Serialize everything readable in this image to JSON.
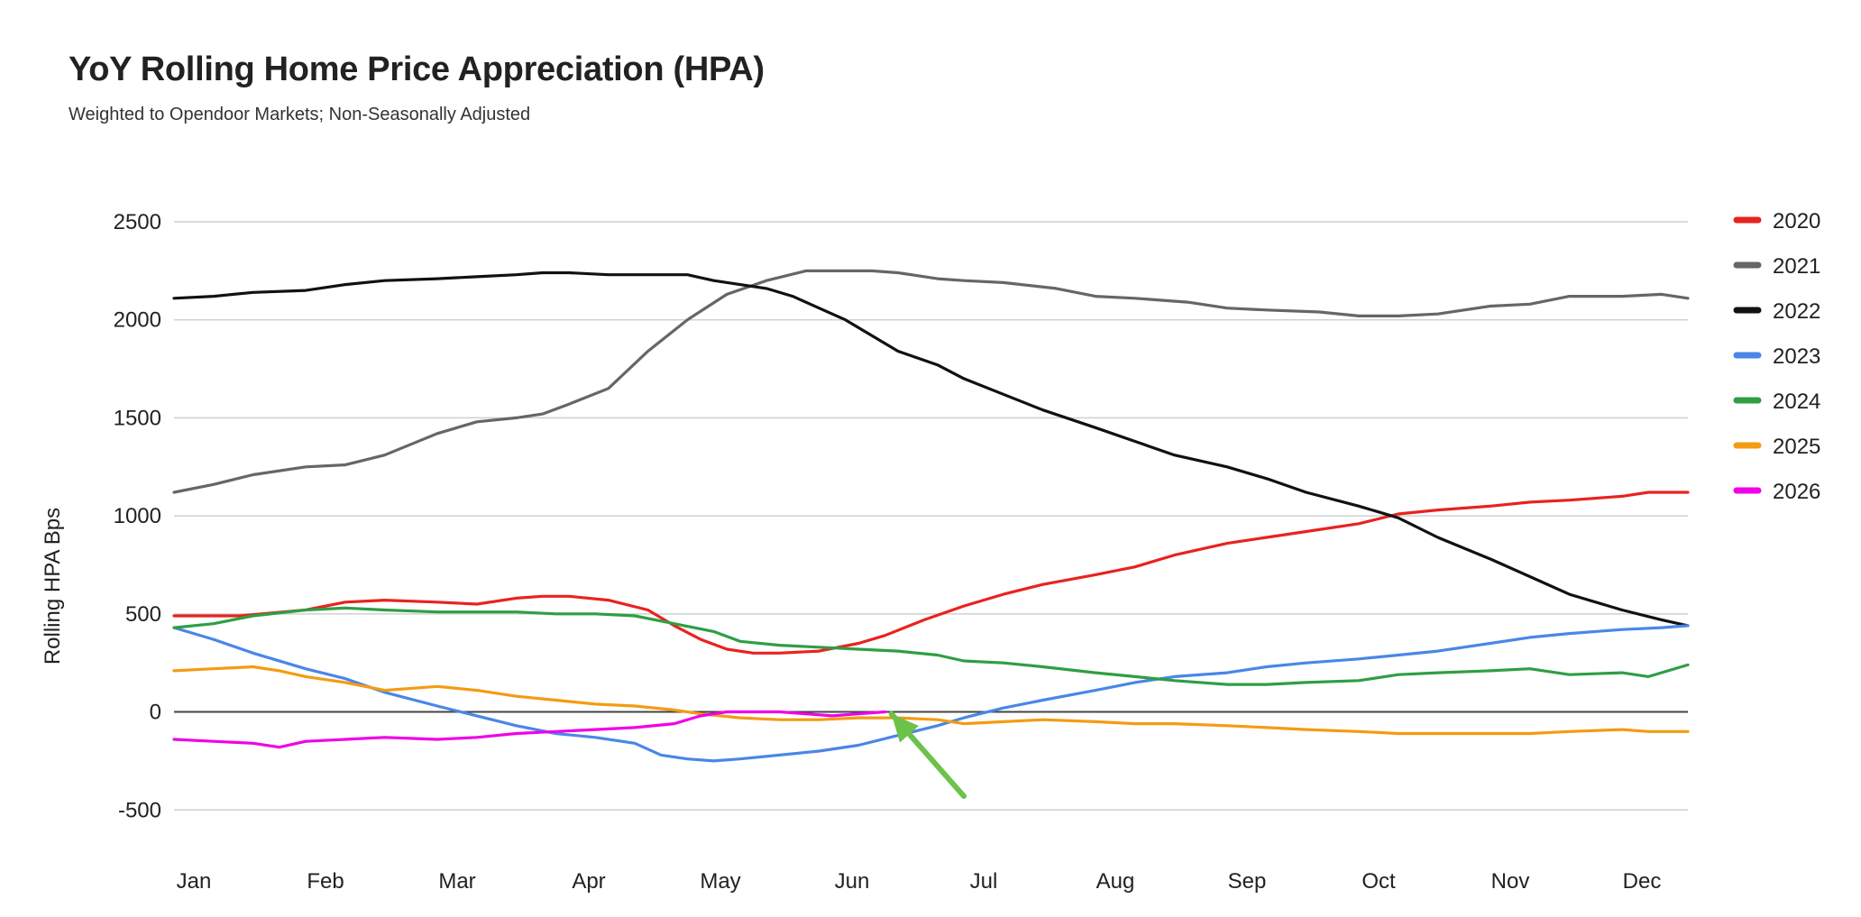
{
  "chart_data": {
    "type": "line",
    "title": "YoY Rolling Home Price Appreciation (HPA)",
    "subtitle": "Weighted to Opendoor Markets; Non-Seasonally Adjusted",
    "xlabel": "",
    "ylabel": "Rolling HPA Bps",
    "ylim": [
      -600,
      2500
    ],
    "y_ticks": [
      2500,
      2000,
      1500,
      1000,
      500,
      0,
      -500
    ],
    "x_ticks": [
      "Jan",
      "Feb",
      "Mar",
      "Apr",
      "May",
      "Jun",
      "Jul",
      "Aug",
      "Sep",
      "Oct",
      "Nov",
      "Dec"
    ],
    "x_domain_months": [
      1.0,
      12.5
    ],
    "grid": true,
    "legend_position": "right",
    "series": [
      {
        "name": "2020",
        "color": "#e8231f",
        "x": [
          1.0,
          1.5,
          2.0,
          2.3,
          2.6,
          3.0,
          3.3,
          3.6,
          3.8,
          4.0,
          4.3,
          4.6,
          4.8,
          5.0,
          5.2,
          5.4,
          5.6,
          5.9,
          6.2,
          6.4,
          6.7,
          7.0,
          7.3,
          7.6,
          8.0,
          8.3,
          8.6,
          9.0,
          9.3,
          9.6,
          10.0,
          10.3,
          10.6,
          11.0,
          11.3,
          11.6,
          12.0,
          12.2,
          12.5
        ],
        "y": [
          490,
          490,
          520,
          560,
          570,
          560,
          550,
          580,
          590,
          590,
          570,
          520,
          440,
          370,
          320,
          300,
          300,
          310,
          350,
          390,
          470,
          540,
          600,
          650,
          700,
          740,
          800,
          860,
          890,
          920,
          960,
          1010,
          1030,
          1050,
          1070,
          1080,
          1100,
          1120,
          1120
        ]
      },
      {
        "name": "2021",
        "color": "#666666",
        "x": [
          1.0,
          1.3,
          1.6,
          2.0,
          2.3,
          2.6,
          3.0,
          3.3,
          3.6,
          3.8,
          4.0,
          4.3,
          4.6,
          4.9,
          5.2,
          5.5,
          5.8,
          6.0,
          6.3,
          6.5,
          6.8,
          7.0,
          7.3,
          7.7,
          8.0,
          8.3,
          8.7,
          9.0,
          9.3,
          9.7,
          10.0,
          10.3,
          10.6,
          11.0,
          11.3,
          11.6,
          12.0,
          12.3,
          12.5
        ],
        "y": [
          1120,
          1160,
          1210,
          1250,
          1260,
          1310,
          1420,
          1480,
          1500,
          1520,
          1570,
          1650,
          1840,
          2000,
          2130,
          2200,
          2250,
          2250,
          2250,
          2240,
          2210,
          2200,
          2190,
          2160,
          2120,
          2110,
          2090,
          2060,
          2050,
          2040,
          2020,
          2020,
          2030,
          2070,
          2080,
          2120,
          2120,
          2130,
          2110
        ]
      },
      {
        "name": "2022",
        "color": "#111111",
        "x": [
          1.0,
          1.3,
          1.6,
          2.0,
          2.3,
          2.6,
          3.0,
          3.3,
          3.6,
          3.8,
          4.0,
          4.3,
          4.6,
          4.9,
          5.1,
          5.3,
          5.5,
          5.7,
          5.9,
          6.1,
          6.3,
          6.5,
          6.8,
          7.0,
          7.3,
          7.6,
          8.0,
          8.3,
          8.6,
          9.0,
          9.3,
          9.6,
          10.0,
          10.3,
          10.6,
          11.0,
          11.3,
          11.6,
          12.0,
          12.3,
          12.5
        ],
        "y": [
          2110,
          2120,
          2140,
          2150,
          2180,
          2200,
          2210,
          2220,
          2230,
          2240,
          2240,
          2230,
          2230,
          2230,
          2200,
          2180,
          2160,
          2120,
          2060,
          2000,
          1920,
          1840,
          1770,
          1700,
          1620,
          1540,
          1450,
          1380,
          1310,
          1250,
          1190,
          1120,
          1050,
          990,
          890,
          780,
          690,
          600,
          520,
          470,
          440
        ]
      },
      {
        "name": "2023",
        "color": "#4a86e8",
        "x": [
          1.0,
          1.3,
          1.6,
          2.0,
          2.3,
          2.6,
          3.0,
          3.3,
          3.6,
          3.9,
          4.2,
          4.5,
          4.7,
          4.9,
          5.1,
          5.3,
          5.6,
          5.9,
          6.2,
          6.5,
          6.8,
          7.0,
          7.3,
          7.6,
          8.0,
          8.3,
          8.6,
          9.0,
          9.3,
          9.6,
          10.0,
          10.3,
          10.6,
          11.0,
          11.3,
          11.6,
          12.0,
          12.3,
          12.5
        ],
        "y": [
          430,
          370,
          300,
          220,
          170,
          100,
          30,
          -20,
          -70,
          -110,
          -130,
          -160,
          -220,
          -240,
          -250,
          -240,
          -220,
          -200,
          -170,
          -120,
          -70,
          -30,
          20,
          60,
          110,
          150,
          180,
          200,
          230,
          250,
          270,
          290,
          310,
          350,
          380,
          400,
          420,
          430,
          440
        ]
      },
      {
        "name": "2024",
        "color": "#2f9e44",
        "x": [
          1.0,
          1.3,
          1.6,
          2.0,
          2.3,
          2.6,
          3.0,
          3.3,
          3.6,
          3.9,
          4.2,
          4.5,
          4.8,
          5.1,
          5.3,
          5.6,
          5.9,
          6.2,
          6.5,
          6.8,
          7.0,
          7.3,
          7.6,
          8.0,
          8.3,
          8.6,
          9.0,
          9.3,
          9.6,
          10.0,
          10.3,
          10.6,
          11.0,
          11.3,
          11.6,
          12.0,
          12.2,
          12.5
        ],
        "y": [
          430,
          450,
          490,
          520,
          530,
          520,
          510,
          510,
          510,
          500,
          500,
          490,
          450,
          410,
          360,
          340,
          330,
          320,
          310,
          290,
          260,
          250,
          230,
          200,
          180,
          160,
          140,
          140,
          150,
          160,
          190,
          200,
          210,
          220,
          190,
          200,
          180,
          240
        ]
      },
      {
        "name": "2025",
        "color": "#f39c12",
        "x": [
          1.0,
          1.3,
          1.6,
          1.8,
          2.0,
          2.3,
          2.6,
          3.0,
          3.3,
          3.6,
          3.9,
          4.2,
          4.5,
          4.8,
          5.0,
          5.3,
          5.6,
          5.9,
          6.2,
          6.5,
          6.8,
          7.0,
          7.3,
          7.6,
          8.0,
          8.3,
          8.6,
          9.0,
          9.3,
          9.6,
          10.0,
          10.3,
          10.6,
          11.0,
          11.3,
          11.6,
          12.0,
          12.2,
          12.5
        ],
        "y": [
          210,
          220,
          230,
          210,
          180,
          150,
          110,
          130,
          110,
          80,
          60,
          40,
          30,
          10,
          -10,
          -30,
          -40,
          -40,
          -30,
          -30,
          -40,
          -60,
          -50,
          -40,
          -50,
          -60,
          -60,
          -70,
          -80,
          -90,
          -100,
          -110,
          -110,
          -110,
          -110,
          -100,
          -90,
          -100,
          -100
        ]
      },
      {
        "name": "2026",
        "color": "#f000e8",
        "x": [
          1.0,
          1.3,
          1.6,
          1.8,
          2.0,
          2.3,
          2.6,
          3.0,
          3.3,
          3.6,
          3.9,
          4.2,
          4.5,
          4.8,
          5.0,
          5.2,
          5.4,
          5.6,
          5.8,
          6.0,
          6.2,
          6.4
        ],
        "y": [
          -140,
          -150,
          -160,
          -180,
          -150,
          -140,
          -130,
          -140,
          -130,
          -110,
          -100,
          -90,
          -80,
          -60,
          -20,
          0,
          0,
          0,
          -10,
          -20,
          -10,
          0
        ]
      }
    ],
    "annotations": [
      {
        "type": "arrow",
        "color": "#6cc24a",
        "from": {
          "x": 7.0,
          "y": -430
        },
        "to": {
          "x": 6.45,
          "y": -10
        }
      }
    ]
  }
}
